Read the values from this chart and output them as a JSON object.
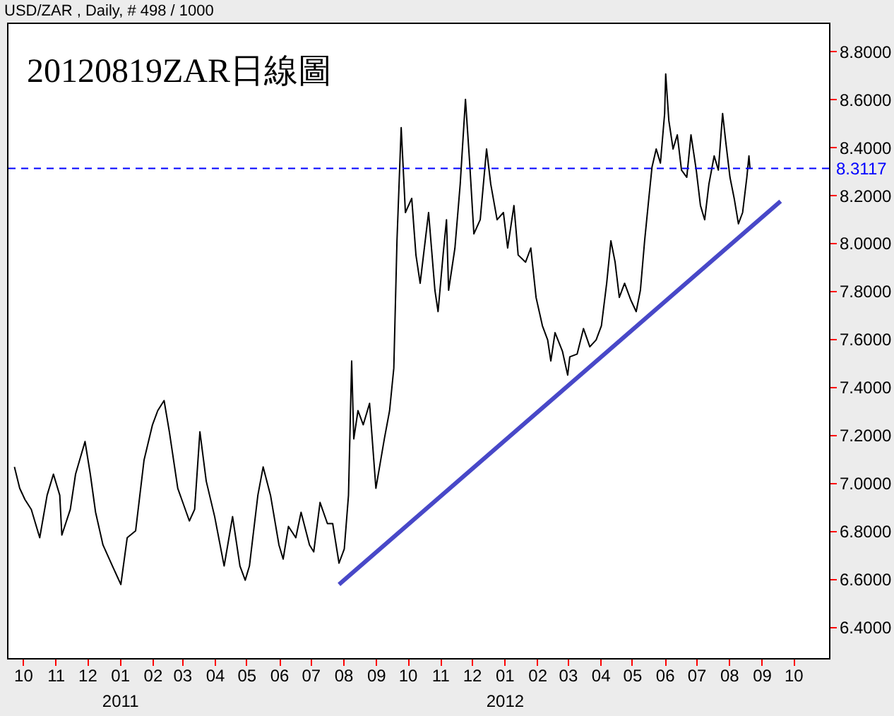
{
  "chart_data": {
    "type": "line",
    "title": "20120819ZAR日線圖",
    "subtitle": "USD/ZAR , Daily, # 498 / 1000",
    "x": [
      "2010-09-23",
      "2010-09-28",
      "2010-10-03",
      "2010-10-09",
      "2010-10-17",
      "2010-10-24",
      "2010-10-30",
      "2010-11-05",
      "2010-11-07",
      "2010-11-15",
      "2010-11-20",
      "2010-11-29",
      "2010-12-04",
      "2010-12-09",
      "2010-12-16",
      "2010-12-25",
      "2011-01-02",
      "2011-01-08",
      "2011-01-16",
      "2011-01-24",
      "2011-02-01",
      "2011-02-06",
      "2011-02-12",
      "2011-02-17",
      "2011-02-25",
      "2011-03-08",
      "2011-03-13",
      "2011-03-18",
      "2011-03-24",
      "2011-04-01",
      "2011-04-10",
      "2011-04-18",
      "2011-04-25",
      "2011-04-30",
      "2011-05-04",
      "2011-05-12",
      "2011-05-17",
      "2011-05-24",
      "2011-06-01",
      "2011-06-05",
      "2011-06-10",
      "2011-06-17",
      "2011-06-22",
      "2011-06-30",
      "2011-07-04",
      "2011-07-10",
      "2011-07-17",
      "2011-07-22",
      "2011-07-28",
      "2011-08-02",
      "2011-08-06",
      "2011-08-09",
      "2011-08-11",
      "2011-08-15",
      "2011-08-20",
      "2011-08-26",
      "2011-09-01",
      "2011-09-09",
      "2011-09-14",
      "2011-09-18",
      "2011-09-21",
      "2011-09-25",
      "2011-09-29",
      "2011-10-05",
      "2011-10-09",
      "2011-10-13",
      "2011-10-21",
      "2011-10-27",
      "2011-10-30",
      "2011-11-04",
      "2011-11-07",
      "2011-11-09",
      "2011-11-15",
      "2011-11-20",
      "2011-11-25",
      "2011-11-29",
      "2011-12-03",
      "2011-12-09",
      "2011-12-15",
      "2011-12-19",
      "2011-12-25",
      "2011-12-31",
      "2012-01-04",
      "2012-01-10",
      "2012-01-14",
      "2012-01-21",
      "2012-01-26",
      "2012-01-31",
      "2012-02-06",
      "2012-02-11",
      "2012-02-14",
      "2012-02-18",
      "2012-02-25",
      "2012-03-01",
      "2012-03-03",
      "2012-03-10",
      "2012-03-16",
      "2012-03-22",
      "2012-03-28",
      "2012-04-02",
      "2012-04-07",
      "2012-04-11",
      "2012-04-15",
      "2012-04-19",
      "2012-04-24",
      "2012-04-30",
      "2012-05-05",
      "2012-05-09",
      "2012-05-13",
      "2012-05-17",
      "2012-05-20",
      "2012-05-24",
      "2012-05-28",
      "2012-06-01",
      "2012-06-02",
      "2012-06-05",
      "2012-06-09",
      "2012-06-13",
      "2012-06-17",
      "2012-06-22",
      "2012-06-26",
      "2012-07-01",
      "2012-07-05",
      "2012-07-09",
      "2012-07-13",
      "2012-07-18",
      "2012-07-22",
      "2012-07-26",
      "2012-07-29",
      "2012-08-02",
      "2012-08-06",
      "2012-08-10",
      "2012-08-14",
      "2012-08-18",
      "2012-08-20",
      "2012-08-21"
    ],
    "series": [
      {
        "color": "#000000",
        "values": [
          7.067,
          6.978,
          6.931,
          6.89,
          6.772,
          6.949,
          7.037,
          6.949,
          6.783,
          6.89,
          7.037,
          7.173,
          7.037,
          6.878,
          6.742,
          6.654,
          6.577,
          6.772,
          6.801,
          7.096,
          7.243,
          7.302,
          7.344,
          7.214,
          6.978,
          6.842,
          6.89,
          7.214,
          7.008,
          6.86,
          6.654,
          6.86,
          6.654,
          6.595,
          6.654,
          6.949,
          7.067,
          6.949,
          6.742,
          6.683,
          6.819,
          6.772,
          6.878,
          6.742,
          6.713,
          6.919,
          6.831,
          6.831,
          6.666,
          6.725,
          6.949,
          7.509,
          7.184,
          7.302,
          7.243,
          7.332,
          6.978,
          7.184,
          7.302,
          7.479,
          8.01,
          8.482,
          8.128,
          8.187,
          7.951,
          7.833,
          8.128,
          7.804,
          7.715,
          7.963,
          8.098,
          7.804,
          7.98,
          8.246,
          8.6,
          8.334,
          8.039,
          8.098,
          8.393,
          8.246,
          8.098,
          8.128,
          7.98,
          8.157,
          7.951,
          7.921,
          7.98,
          7.774,
          7.656,
          7.597,
          7.509,
          7.627,
          7.55,
          7.45,
          7.526,
          7.538,
          7.644,
          7.568,
          7.597,
          7.656,
          7.833,
          8.01,
          7.921,
          7.774,
          7.833,
          7.762,
          7.715,
          7.804,
          8.01,
          8.187,
          8.317,
          8.393,
          8.334,
          8.541,
          8.706,
          8.511,
          8.393,
          8.452,
          8.305,
          8.275,
          8.452,
          8.305,
          8.157,
          8.098,
          8.246,
          8.364,
          8.305,
          8.541,
          8.423,
          8.275,
          8.187,
          8.081,
          8.128,
          8.275,
          8.364,
          8.31
        ]
      },
      {
        "type": "line",
        "color": "#4848c8",
        "x": [
          "2011-07-28",
          "2012-09-19"
        ],
        "values": [
          6.577,
          8.175
        ]
      }
    ],
    "ref_lines": [
      {
        "axis": "y",
        "value": 8.3117,
        "label": "8.3117",
        "color": "#0000ff",
        "line_style": "dashed"
      }
    ],
    "xlim": [
      "2010-09-16",
      "2012-11-04"
    ],
    "xticks": [
      {
        "value": "2010-10-01",
        "label": "10"
      },
      {
        "value": "2010-11-01",
        "label": "11"
      },
      {
        "value": "2010-12-01",
        "label": "12"
      },
      {
        "value": "2011-01-01",
        "label": "01\n2011"
      },
      {
        "value": "2011-02-01",
        "label": "02"
      },
      {
        "value": "2011-03-01",
        "label": "03"
      },
      {
        "value": "2011-04-01",
        "label": "04"
      },
      {
        "value": "2011-05-01",
        "label": "05"
      },
      {
        "value": "2011-06-01",
        "label": "06"
      },
      {
        "value": "2011-07-01",
        "label": "07"
      },
      {
        "value": "2011-08-01",
        "label": "08"
      },
      {
        "value": "2011-09-01",
        "label": "09"
      },
      {
        "value": "2011-10-01",
        "label": "10"
      },
      {
        "value": "2011-11-01",
        "label": "11"
      },
      {
        "value": "2011-12-01",
        "label": "12"
      },
      {
        "value": "2012-01-01",
        "label": "01\n2012"
      },
      {
        "value": "2012-02-01",
        "label": "02"
      },
      {
        "value": "2012-03-01",
        "label": "03"
      },
      {
        "value": "2012-04-01",
        "label": "04"
      },
      {
        "value": "2012-05-01",
        "label": "05"
      },
      {
        "value": "2012-06-01",
        "label": "06"
      },
      {
        "value": "2012-07-01",
        "label": "07"
      },
      {
        "value": "2012-08-01",
        "label": "08"
      },
      {
        "value": "2012-09-01",
        "label": "09"
      },
      {
        "value": "2012-10-01",
        "label": "10"
      }
    ],
    "ylim": [
      6.27,
      8.92
    ],
    "yticks": [
      {
        "value": 6.4,
        "label": "6.4000"
      },
      {
        "value": 6.6,
        "label": "6.6000"
      },
      {
        "value": 6.8,
        "label": "6.8000"
      },
      {
        "value": 7.0,
        "label": "7.0000"
      },
      {
        "value": 7.2,
        "label": "7.2000"
      },
      {
        "value": 7.4,
        "label": "7.4000"
      },
      {
        "value": 7.6,
        "label": "7.6000"
      },
      {
        "value": 7.8,
        "label": "7.8000"
      },
      {
        "value": 8.0,
        "label": "8.0000"
      },
      {
        "value": 8.2,
        "label": "8.2000"
      },
      {
        "value": 8.4,
        "label": "8.4000"
      },
      {
        "value": 8.6,
        "label": "8.6000"
      },
      {
        "value": 8.8,
        "label": "8.8000"
      }
    ]
  }
}
